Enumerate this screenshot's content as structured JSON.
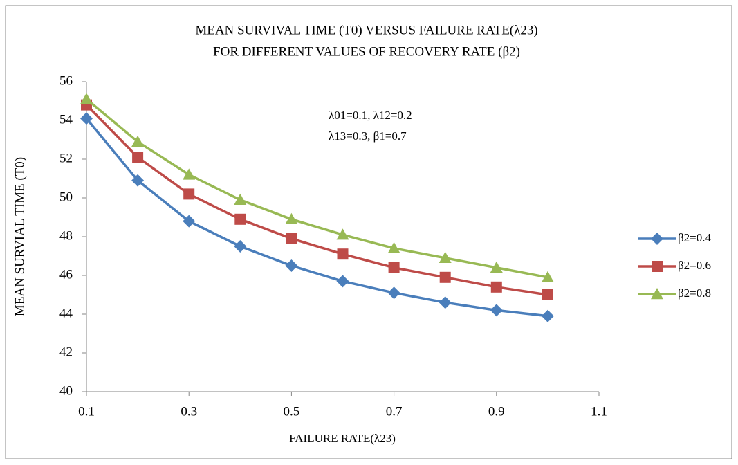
{
  "chart_data": {
    "type": "line",
    "title": [
      "MEAN SURVIVAL TIME (T0) VERSUS FAILURE RATE(λ23)",
      "FOR DIFFERENT VALUES OF RECOVERY RATE (β2)"
    ],
    "x_label": "FAILURE RATE(λ23)",
    "y_label": "MEAN SURVIAL TIME (T0)",
    "annotation": [
      "λ01=0.1, λ12=0.2",
      "λ13=0.3, β1=0.7"
    ],
    "x": [
      0.1,
      0.2,
      0.3,
      0.4,
      0.5,
      0.6,
      0.7,
      0.8,
      0.9,
      1.0
    ],
    "series": [
      {
        "name": "β2=0.4",
        "color": "#4a7ebb",
        "marker": "diamond",
        "values": [
          54.1,
          50.9,
          48.8,
          47.5,
          46.5,
          45.7,
          45.1,
          44.6,
          44.2,
          43.9
        ]
      },
      {
        "name": "β2=0.6",
        "color": "#be4b48",
        "marker": "square",
        "values": [
          54.8,
          52.1,
          50.2,
          48.9,
          47.9,
          47.1,
          46.4,
          45.9,
          45.4,
          45.0
        ]
      },
      {
        "name": "β2=0.8",
        "color": "#98b954",
        "marker": "triangle",
        "values": [
          55.1,
          52.9,
          51.2,
          49.9,
          48.9,
          48.1,
          47.4,
          46.9,
          46.4,
          45.9
        ]
      }
    ],
    "xlim": [
      0.1,
      1.1
    ],
    "xticks": [
      0.1,
      0.3,
      0.5,
      0.7,
      0.9,
      1.1
    ],
    "ylim": [
      40,
      56
    ],
    "yticks": [
      40,
      42,
      44,
      46,
      48,
      50,
      52,
      54,
      56
    ],
    "grid": false,
    "legend": "right"
  }
}
